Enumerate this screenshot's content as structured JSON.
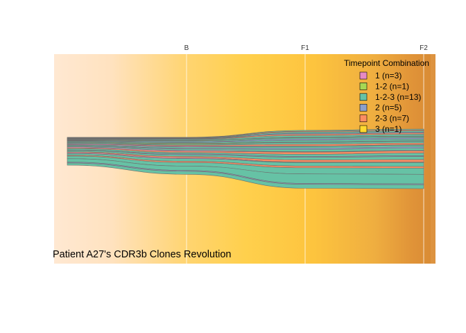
{
  "chart_data": {
    "type": "area",
    "title": "Patient A27's CDR3b Clones Revolution",
    "x_ticks": [
      "B",
      "F1",
      "F2"
    ],
    "legend": {
      "title": "Timepoint Combination",
      "entries": [
        {
          "key": "1",
          "label": "1 (n=3)",
          "color": "#e78ac3"
        },
        {
          "key": "1-2",
          "label": "1-2 (n=1)",
          "color": "#a6d854"
        },
        {
          "key": "1-2-3",
          "label": "1-2-3 (n=13)",
          "color": "#66c2a5"
        },
        {
          "key": "2",
          "label": "2 (n=5)",
          "color": "#8da0cb"
        },
        {
          "key": "2-3",
          "label": "2-3 (n=7)",
          "color": "#fc8d62"
        },
        {
          "key": "3",
          "label": "3 (n=1)",
          "color": "#ffd92f"
        }
      ],
      "placement": "top-right"
    },
    "series_colors": {
      "1": "#e78ac3",
      "1-2": "#a6d854",
      "1-2-3": "#66c2a5",
      "2": "#8da0cb",
      "2-3": "#fc8d62",
      "3": "#ffd92f"
    },
    "grid": true
  }
}
